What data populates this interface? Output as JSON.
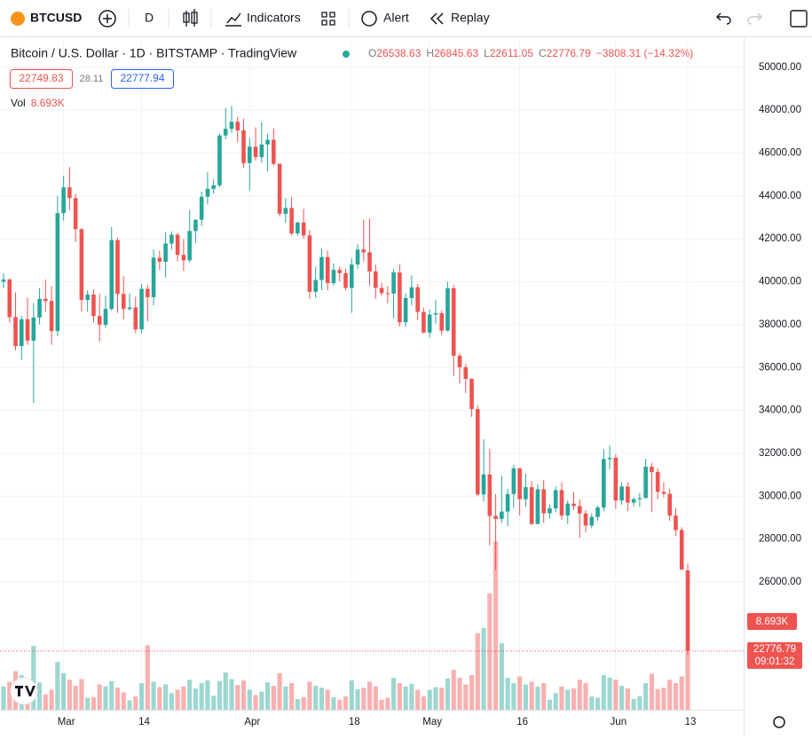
{
  "toolbar": {
    "symbol": "BTCUSD",
    "interval": "D",
    "indicators": "Indicators",
    "alert": "Alert",
    "replay": "Replay"
  },
  "legend": {
    "title": "Bitcoin / U.S. Dollar · 1D · BITSTAMP · TradingView",
    "o": "O",
    "h": "H",
    "l": "L",
    "c": "C",
    "change": "−3808.31 (−14.32%)",
    "bid": "22749.83",
    "spread": "28.11",
    "ask": "22777.94",
    "vol": "Vol",
    "vol_value": "8.693K",
    "countdown": "09:01:32"
  },
  "chart_data": {
    "type": "candlestick",
    "up_color": "#26a69a",
    "down_color": "#ef5350",
    "ylim": [
      20040,
      51400
    ],
    "yticks": [
      {
        "value": 26000,
        "label": "26000.00"
      },
      {
        "value": 28000,
        "label": "28000.00"
      },
      {
        "value": 30000,
        "label": "30000.00"
      },
      {
        "value": 32000,
        "label": "32000.00"
      },
      {
        "value": 34000,
        "label": "34000.00"
      },
      {
        "value": 36000,
        "label": "36000.00"
      },
      {
        "value": 38000,
        "label": "38000.00"
      },
      {
        "value": 40000,
        "label": "40000.00"
      },
      {
        "value": 42000,
        "label": "42000.00"
      },
      {
        "value": 44000,
        "label": "44000.00"
      },
      {
        "value": 46000,
        "label": "46000.00"
      },
      {
        "value": 48000,
        "label": "48000.00"
      },
      {
        "value": 50000,
        "label": "50000.00"
      }
    ],
    "xlabels": [
      "Mar",
      "14",
      "Apr",
      "18",
      "May",
      "16",
      "Jun",
      "13"
    ],
    "candles": [
      [
        40000,
        40400,
        39700,
        40100
      ],
      [
        40100,
        40150,
        38100,
        38350
      ],
      [
        38350,
        39500,
        36800,
        37000
      ],
      [
        37000,
        38400,
        36350,
        38250
      ],
      [
        38250,
        39250,
        37050,
        37250
      ],
      [
        37250,
        39000,
        34350,
        38330
      ],
      [
        38330,
        39700,
        38000,
        39200
      ],
      [
        39200,
        40100,
        38600,
        39100
      ],
      [
        39100,
        39800,
        37050,
        37700
      ],
      [
        37700,
        44000,
        37450,
        43200
      ],
      [
        43200,
        44950,
        42850,
        44400
      ],
      [
        44400,
        45350,
        43350,
        43900
      ],
      [
        43900,
        44100,
        41850,
        42450
      ],
      [
        42450,
        42500,
        38600,
        39150
      ],
      [
        39150,
        39600,
        38600,
        39400
      ],
      [
        39400,
        39650,
        38100,
        38400
      ],
      [
        38400,
        39450,
        37200,
        37990
      ],
      [
        37990,
        39350,
        37850,
        38730
      ],
      [
        38730,
        42550,
        38650,
        41940
      ],
      [
        41940,
        42050,
        38550,
        39430
      ],
      [
        39430,
        40250,
        38250,
        38730
      ],
      [
        38730,
        39450,
        38650,
        38800
      ],
      [
        38800,
        39300,
        37600,
        37780
      ],
      [
        37780,
        39900,
        37600,
        39670
      ],
      [
        39670,
        39850,
        38150,
        39280
      ],
      [
        39280,
        41500,
        38900,
        41120
      ],
      [
        41120,
        41450,
        40550,
        40930
      ],
      [
        40930,
        42300,
        40200,
        41780
      ],
      [
        41780,
        42350,
        41500,
        42190
      ],
      [
        42190,
        42280,
        40950,
        41250
      ],
      [
        41250,
        42000,
        40500,
        41000
      ],
      [
        41000,
        43350,
        40900,
        42370
      ],
      [
        42370,
        42900,
        41800,
        42890
      ],
      [
        42890,
        44200,
        42600,
        43960
      ],
      [
        43960,
        45100,
        43600,
        44330
      ],
      [
        44330,
        44800,
        44100,
        44500
      ],
      [
        44500,
        46900,
        44400,
        46820
      ],
      [
        46820,
        48100,
        46650,
        47130
      ],
      [
        47130,
        48200,
        46950,
        47460
      ],
      [
        47460,
        47700,
        46500,
        47060
      ],
      [
        47060,
        47600,
        45300,
        45530
      ],
      [
        45530,
        46700,
        44250,
        46300
      ],
      [
        46300,
        47200,
        45650,
        45810
      ],
      [
        45810,
        47450,
        45550,
        46400
      ],
      [
        46400,
        46900,
        45150,
        46620
      ],
      [
        46620,
        47150,
        45400,
        45500
      ],
      [
        45500,
        45500,
        43050,
        43170
      ],
      [
        43170,
        43900,
        42750,
        43440
      ],
      [
        43440,
        43950,
        42150,
        42250
      ],
      [
        42250,
        42800,
        42150,
        42760
      ],
      [
        42760,
        43400,
        42000,
        42160
      ],
      [
        42160,
        42400,
        39200,
        39530
      ],
      [
        39530,
        40700,
        39250,
        40080
      ],
      [
        40080,
        41550,
        39600,
        41150
      ],
      [
        41150,
        41450,
        39600,
        39940
      ],
      [
        39940,
        40850,
        39800,
        40550
      ],
      [
        40550,
        40700,
        40000,
        40400
      ],
      [
        40400,
        40600,
        39600,
        39710
      ],
      [
        39710,
        41100,
        38550,
        40800
      ],
      [
        40800,
        41750,
        40600,
        41500
      ],
      [
        41500,
        42900,
        40950,
        41370
      ],
      [
        41370,
        42950,
        39800,
        40480
      ],
      [
        40480,
        40800,
        39200,
        39710
      ],
      [
        39710,
        39950,
        39350,
        39470
      ],
      [
        39470,
        39800,
        39000,
        39450
      ],
      [
        39450,
        40600,
        38300,
        40430
      ],
      [
        40430,
        40800,
        37900,
        38110
      ],
      [
        38110,
        39450,
        37900,
        39240
      ],
      [
        39240,
        40300,
        38900,
        39740
      ],
      [
        39740,
        39900,
        38200,
        38590
      ],
      [
        38590,
        38800,
        37600,
        37630
      ],
      [
        37630,
        38700,
        37400,
        38470
      ],
      [
        38470,
        39150,
        38050,
        38530
      ],
      [
        38530,
        38650,
        37500,
        37720
      ],
      [
        37720,
        40000,
        37680,
        39690
      ],
      [
        39690,
        39850,
        35600,
        36550
      ],
      [
        36550,
        36650,
        35250,
        36010
      ],
      [
        36010,
        36150,
        34800,
        35470
      ],
      [
        35470,
        35500,
        33700,
        34060
      ],
      [
        34060,
        34250,
        30000,
        30080
      ],
      [
        30080,
        32650,
        29750,
        31010
      ],
      [
        31010,
        32200,
        27700,
        29080
      ],
      [
        29080,
        30100,
        26550,
        28940
      ],
      [
        28940,
        30950,
        28750,
        29280
      ],
      [
        29280,
        30350,
        28600,
        30100
      ],
      [
        30100,
        31450,
        29450,
        31300
      ],
      [
        31300,
        31300,
        29100,
        29860
      ],
      [
        29860,
        31050,
        29500,
        30420
      ],
      [
        30420,
        30700,
        28650,
        28700
      ],
      [
        28700,
        30550,
        28700,
        30320
      ],
      [
        30320,
        30750,
        28750,
        29200
      ],
      [
        29200,
        29600,
        28950,
        29430
      ],
      [
        29430,
        30450,
        29250,
        30280
      ],
      [
        30280,
        30650,
        28900,
        29100
      ],
      [
        29100,
        29800,
        28700,
        29650
      ],
      [
        29650,
        30200,
        29350,
        29540
      ],
      [
        29540,
        29850,
        28050,
        29190
      ],
      [
        29190,
        29350,
        28300,
        28630
      ],
      [
        28630,
        29200,
        28500,
        29030
      ],
      [
        29030,
        29550,
        28850,
        29470
      ],
      [
        29470,
        32200,
        29300,
        31730
      ],
      [
        31730,
        32350,
        31250,
        31790
      ],
      [
        31790,
        31950,
        29400,
        29800
      ],
      [
        29800,
        30650,
        29600,
        30450
      ],
      [
        30450,
        30650,
        29300,
        29700
      ],
      [
        29700,
        29950,
        29500,
        29860
      ],
      [
        29860,
        30150,
        29500,
        29910
      ],
      [
        29910,
        31750,
        29900,
        31370
      ],
      [
        31370,
        31550,
        29250,
        31130
      ],
      [
        31130,
        31300,
        29850,
        30200
      ],
      [
        30200,
        30650,
        29950,
        30110
      ],
      [
        30110,
        30350,
        28850,
        29090
      ],
      [
        29090,
        29450,
        28150,
        28420
      ],
      [
        28420,
        28550,
        26550,
        26580
      ],
      [
        26538.63,
        26845.63,
        22611.05,
        22776.79
      ]
    ],
    "volume": [
      3.5,
      4.2,
      5.8,
      5.2,
      4.3,
      9.6,
      4.1,
      2.3,
      3.0,
      7.2,
      5.5,
      4.5,
      3.6,
      4.6,
      1.8,
      1.9,
      3.8,
      3.5,
      4.3,
      3.3,
      2.6,
      1.4,
      2.0,
      4.0,
      9.7,
      4.2,
      3.4,
      3.8,
      2.5,
      3.0,
      3.5,
      4.5,
      3.2,
      4.0,
      4.4,
      2.1,
      4.3,
      5.6,
      4.6,
      3.7,
      4.4,
      3.0,
      2.2,
      2.7,
      4.1,
      3.6,
      5.5,
      3.5,
      4.0,
      1.6,
      1.9,
      4.2,
      3.6,
      3.3,
      3.0,
      1.9,
      1.5,
      2.0,
      4.4,
      3.1,
      3.3,
      4.2,
      3.5,
      1.5,
      1.8,
      4.8,
      4.0,
      3.5,
      3.9,
      3.0,
      2.0,
      3.0,
      3.4,
      3.3,
      4.7,
      6.0,
      4.8,
      3.8,
      5.2,
      11.5,
      12.3,
      17.5,
      25.3,
      10.0,
      4.8,
      4.0,
      5.0,
      3.8,
      4.2,
      3.5,
      4.0,
      1.5,
      2.5,
      3.5,
      3.0,
      3.2,
      4.5,
      4.0,
      2.0,
      1.8,
      5.2,
      4.8,
      4.5,
      3.6,
      3.2,
      1.6,
      2.0,
      4.0,
      5.4,
      3.1,
      3.3,
      4.5,
      4.0,
      5.0,
      8.693
    ]
  }
}
